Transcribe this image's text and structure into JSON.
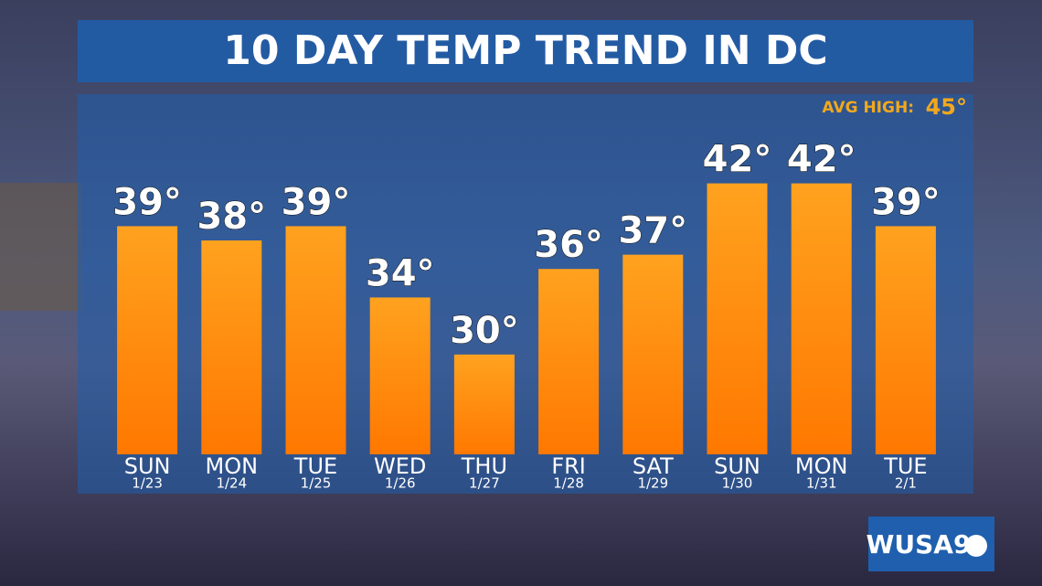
{
  "chart_data": {
    "type": "bar",
    "title": "10 DAY TEMP TREND IN DC",
    "annotation_label": "AVG HIGH:",
    "annotation_value": "45°",
    "categories": [
      "SUN",
      "MON",
      "TUE",
      "WED",
      "THU",
      "FRI",
      "SAT",
      "SUN",
      "MON",
      "TUE"
    ],
    "dates": [
      "1/23",
      "1/24",
      "1/25",
      "1/26",
      "1/27",
      "1/28",
      "1/29",
      "1/30",
      "1/31",
      "2/1"
    ],
    "values": [
      39,
      38,
      39,
      34,
      30,
      36,
      37,
      42,
      42,
      39
    ],
    "value_labels": [
      "39°",
      "38°",
      "39°",
      "34°",
      "30°",
      "36°",
      "37°",
      "42°",
      "42°",
      "39°"
    ],
    "color": "#ff8a0a",
    "ylim": [
      23,
      43
    ]
  },
  "logo": "WUSA9"
}
